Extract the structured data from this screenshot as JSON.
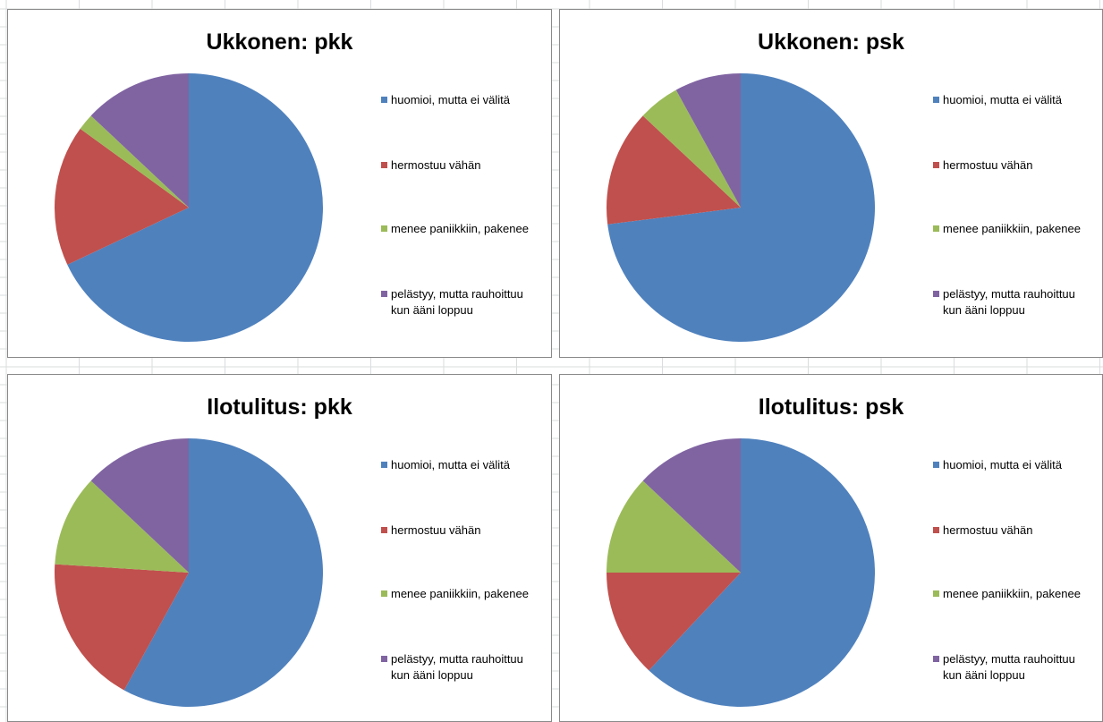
{
  "chart_data": [
    {
      "type": "pie",
      "title": "Ukkonen: pkk",
      "categories": [
        "huomioi, mutta ei välitä",
        "hermostuu vähän",
        "menee paniikkiin, pakenee",
        "pelästyy, mutta rauhoittuu kun ääni loppuu"
      ],
      "values": [
        68,
        17,
        2,
        13
      ],
      "colors": [
        "#4f81bd",
        "#c0504d",
        "#9bbb59",
        "#8064a2"
      ]
    },
    {
      "type": "pie",
      "title": "Ukkonen: psk",
      "categories": [
        "huomioi, mutta ei välitä",
        "hermostuu vähän",
        "menee paniikkiin, pakenee",
        "pelästyy, mutta rauhoittuu kun ääni loppuu"
      ],
      "values": [
        73,
        14,
        5,
        8
      ],
      "colors": [
        "#4f81bd",
        "#c0504d",
        "#9bbb59",
        "#8064a2"
      ]
    },
    {
      "type": "pie",
      "title": "Ilotulitus: pkk",
      "categories": [
        "huomioi, mutta ei välitä",
        "hermostuu vähän",
        "menee paniikkiin, pakenee",
        "pelästyy, mutta rauhoittuu kun ääni loppuu"
      ],
      "values": [
        58,
        18,
        11,
        13
      ],
      "colors": [
        "#4f81bd",
        "#c0504d",
        "#9bbb59",
        "#8064a2"
      ]
    },
    {
      "type": "pie",
      "title": "Ilotulitus: psk",
      "categories": [
        "huomioi, mutta ei välitä",
        "hermostuu vähän",
        "menee paniikkiin, pakenee",
        "pelästyy, mutta rauhoittuu kun ääni loppuu"
      ],
      "values": [
        62,
        13,
        12,
        13
      ],
      "colors": [
        "#4f81bd",
        "#c0504d",
        "#9bbb59",
        "#8064a2"
      ]
    }
  ]
}
